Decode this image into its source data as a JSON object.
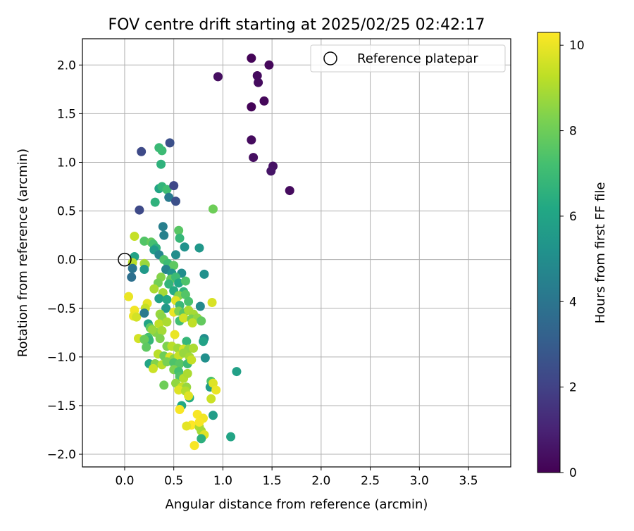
{
  "chart_data": {
    "type": "scatter",
    "title": "FOV centre drift starting at 2025/02/25 02:42:17",
    "xlabel": "Angular distance from reference (arcmin)",
    "ylabel": "Rotation from reference (arcmin)",
    "xlim": [
      -0.43,
      3.93
    ],
    "ylim": [
      -2.13,
      2.27
    ],
    "xticks": [
      0.0,
      0.5,
      1.0,
      1.5,
      2.0,
      2.5,
      3.0,
      3.5
    ],
    "xtick_labels": [
      "0.0",
      "0.5",
      "1.0",
      "1.5",
      "2.0",
      "2.5",
      "3.0",
      "3.5"
    ],
    "yticks": [
      -2.0,
      -1.5,
      -1.0,
      -0.5,
      0.0,
      0.5,
      1.0,
      1.5,
      2.0
    ],
    "ytick_labels": [
      "−2.0",
      "−1.5",
      "−1.0",
      "−0.5",
      "0.0",
      "0.5",
      "1.0",
      "1.5",
      "2.0"
    ],
    "grid": true,
    "legend": {
      "position": "top-right",
      "entries": [
        "Reference platepar"
      ]
    },
    "reference_point": {
      "x": 0.0,
      "y": 0.0,
      "label": "Reference platepar",
      "marker": "open-circle"
    },
    "colorbar": {
      "label": "Hours from first FF file",
      "range": [
        0,
        10.3
      ],
      "ticks": [
        0,
        2,
        4,
        6,
        8,
        10
      ],
      "tick_labels": [
        "0",
        "2",
        "4",
        "6",
        "8",
        "10"
      ],
      "colormap": "viridis"
    },
    "points": [
      [
        1.29,
        2.07,
        0.1
      ],
      [
        1.47,
        2.0,
        0.2
      ],
      [
        1.35,
        1.89,
        0.3
      ],
      [
        0.95,
        1.88,
        0.4
      ],
      [
        1.36,
        1.82,
        0.3
      ],
      [
        1.42,
        1.63,
        0.2
      ],
      [
        1.29,
        1.57,
        0.1
      ],
      [
        1.29,
        1.23,
        0.3
      ],
      [
        1.31,
        1.05,
        0.4
      ],
      [
        1.51,
        0.96,
        0.5
      ],
      [
        1.49,
        0.91,
        0.6
      ],
      [
        1.68,
        0.71,
        0.3
      ],
      [
        0.17,
        1.11,
        2.3
      ],
      [
        0.46,
        1.2,
        2.5
      ],
      [
        0.35,
        1.15,
        6.9
      ],
      [
        0.38,
        1.12,
        7.0
      ],
      [
        0.37,
        0.98,
        6.6
      ],
      [
        0.35,
        0.73,
        6.0
      ],
      [
        0.38,
        0.75,
        6.7
      ],
      [
        0.43,
        0.72,
        7.1
      ],
      [
        0.5,
        0.76,
        2.2
      ],
      [
        0.45,
        0.64,
        4.2
      ],
      [
        0.52,
        0.6,
        2.5
      ],
      [
        0.31,
        0.59,
        6.6
      ],
      [
        0.15,
        0.51,
        2.3
      ],
      [
        0.9,
        0.52,
        8.0
      ],
      [
        0.39,
        0.34,
        4.4
      ],
      [
        0.55,
        0.3,
        7.6
      ],
      [
        0.1,
        0.24,
        9.4
      ],
      [
        0.4,
        0.25,
        4.5
      ],
      [
        0.56,
        0.22,
        6.8
      ],
      [
        0.2,
        0.19,
        7.5
      ],
      [
        0.27,
        0.18,
        7.8
      ],
      [
        0.29,
        0.16,
        7.2
      ],
      [
        0.32,
        0.12,
        6.6
      ],
      [
        0.3,
        0.1,
        5.6
      ],
      [
        0.61,
        0.13,
        5.2
      ],
      [
        0.76,
        0.12,
        5.4
      ],
      [
        0.1,
        0.03,
        5.9
      ],
      [
        0.35,
        0.05,
        4.7
      ],
      [
        0.52,
        0.05,
        5.0
      ],
      [
        0.08,
        -0.03,
        9.2
      ],
      [
        0.2,
        -0.04,
        9.0
      ],
      [
        0.21,
        -0.05,
        8.7
      ],
      [
        0.4,
        0.0,
        7.4
      ],
      [
        0.44,
        -0.04,
        7.0
      ],
      [
        0.5,
        -0.06,
        7.7
      ],
      [
        0.08,
        -0.09,
        4.0
      ],
      [
        0.42,
        -0.1,
        4.6
      ],
      [
        0.2,
        -0.1,
        5.5
      ],
      [
        0.07,
        -0.18,
        3.8
      ],
      [
        0.48,
        -0.14,
        5.3
      ],
      [
        0.58,
        -0.14,
        5.0
      ],
      [
        0.81,
        -0.15,
        5.1
      ],
      [
        0.37,
        -0.18,
        8.4
      ],
      [
        0.47,
        -0.2,
        7.8
      ],
      [
        0.52,
        -0.18,
        7.0
      ],
      [
        0.34,
        -0.24,
        8.1
      ],
      [
        0.45,
        -0.25,
        6.7
      ],
      [
        0.55,
        -0.24,
        6.1
      ],
      [
        0.62,
        -0.22,
        7.4
      ],
      [
        0.3,
        -0.3,
        9.0
      ],
      [
        0.39,
        -0.34,
        8.9
      ],
      [
        0.5,
        -0.32,
        6.3
      ],
      [
        0.6,
        -0.33,
        6.7
      ],
      [
        0.55,
        -0.37,
        8.4
      ],
      [
        0.62,
        -0.36,
        7.5
      ],
      [
        0.35,
        -0.4,
        5.8
      ],
      [
        0.43,
        -0.41,
        6.2
      ],
      [
        0.52,
        -0.42,
        9.8
      ],
      [
        0.65,
        -0.43,
        7.3
      ],
      [
        0.04,
        -0.38,
        10.0
      ],
      [
        0.23,
        -0.45,
        9.9
      ],
      [
        0.1,
        -0.52,
        10.1
      ],
      [
        0.21,
        -0.5,
        9.4
      ],
      [
        0.42,
        -0.5,
        5.5
      ],
      [
        0.56,
        -0.47,
        6.9
      ],
      [
        0.77,
        -0.48,
        4.8
      ],
      [
        0.89,
        -0.44,
        9.7
      ],
      [
        0.09,
        -0.58,
        10.0
      ],
      [
        0.12,
        -0.59,
        9.6
      ],
      [
        0.2,
        -0.55,
        4.2
      ],
      [
        0.36,
        -0.56,
        8.7
      ],
      [
        0.38,
        -0.59,
        8.5
      ],
      [
        0.5,
        -0.54,
        10.0
      ],
      [
        0.55,
        -0.53,
        8.3
      ],
      [
        0.6,
        -0.55,
        7.6
      ],
      [
        0.65,
        -0.52,
        9.0
      ],
      [
        0.7,
        -0.56,
        8.9
      ],
      [
        0.56,
        -0.63,
        7.1
      ],
      [
        0.6,
        -0.6,
        9.6
      ],
      [
        0.68,
        -0.61,
        8.2
      ],
      [
        0.74,
        -0.6,
        8.6
      ],
      [
        0.78,
        -0.63,
        7.8
      ],
      [
        0.69,
        -0.65,
        9.3
      ],
      [
        0.24,
        -0.66,
        6.0
      ],
      [
        0.26,
        -0.7,
        7.7
      ],
      [
        0.35,
        -0.66,
        9.3
      ],
      [
        0.43,
        -0.64,
        9.0
      ],
      [
        0.32,
        -0.75,
        8.4
      ],
      [
        0.38,
        -0.73,
        8.9
      ],
      [
        0.28,
        -0.72,
        8.7
      ],
      [
        0.51,
        -0.77,
        10.0
      ],
      [
        0.14,
        -0.81,
        9.6
      ],
      [
        0.24,
        -0.8,
        7.2
      ],
      [
        0.25,
        -0.83,
        6.8
      ],
      [
        0.36,
        -0.81,
        8.3
      ],
      [
        0.2,
        -0.82,
        7.9
      ],
      [
        0.81,
        -0.81,
        5.0
      ],
      [
        0.8,
        -0.84,
        5.9
      ],
      [
        0.63,
        -0.84,
        6.8
      ],
      [
        0.43,
        -0.89,
        8.3
      ],
      [
        0.48,
        -0.89,
        9.2
      ],
      [
        0.54,
        -0.91,
        8.8
      ],
      [
        0.22,
        -0.9,
        7.7
      ],
      [
        0.6,
        -0.92,
        9.6
      ],
      [
        0.65,
        -0.92,
        8.6
      ],
      [
        0.7,
        -0.91,
        9.0
      ],
      [
        0.34,
        -0.97,
        9.2
      ],
      [
        0.4,
        -0.99,
        8.0
      ],
      [
        0.46,
        -1.0,
        9.7
      ],
      [
        0.5,
        -1.02,
        8.5
      ],
      [
        0.55,
        -0.99,
        9.4
      ],
      [
        0.6,
        -0.96,
        8.7
      ],
      [
        0.66,
        -1.0,
        8.9
      ],
      [
        0.82,
        -1.01,
        5.1
      ],
      [
        0.25,
        -1.07,
        6.0
      ],
      [
        0.31,
        -1.07,
        8.4
      ],
      [
        0.38,
        -1.08,
        9.2
      ],
      [
        0.43,
        -1.05,
        8.2
      ],
      [
        0.5,
        -1.06,
        7.4
      ],
      [
        0.56,
        -1.07,
        7.6
      ],
      [
        0.64,
        -1.07,
        7.0
      ],
      [
        0.68,
        -1.03,
        9.4
      ],
      [
        0.29,
        -1.12,
        9.5
      ],
      [
        0.5,
        -1.13,
        8.3
      ],
      [
        0.55,
        -1.15,
        7.2
      ],
      [
        1.14,
        -1.15,
        5.8
      ],
      [
        0.56,
        -1.2,
        7.4
      ],
      [
        0.6,
        -1.22,
        9.1
      ],
      [
        0.64,
        -1.17,
        9.0
      ],
      [
        0.52,
        -1.27,
        8.6
      ],
      [
        0.4,
        -1.29,
        8.0
      ],
      [
        0.88,
        -1.25,
        7.4
      ],
      [
        0.87,
        -1.31,
        5.7
      ],
      [
        0.9,
        -1.27,
        9.8
      ],
      [
        0.58,
        -1.31,
        9.4
      ],
      [
        0.63,
        -1.31,
        8.7
      ],
      [
        0.55,
        -1.34,
        9.8
      ],
      [
        0.62,
        -1.35,
        9.1
      ],
      [
        0.93,
        -1.34,
        10.0
      ],
      [
        0.66,
        -1.42,
        6.3
      ],
      [
        0.88,
        -1.43,
        9.5
      ],
      [
        0.65,
        -1.4,
        9.8
      ],
      [
        0.58,
        -1.5,
        6.2
      ],
      [
        0.56,
        -1.54,
        10.2
      ],
      [
        0.9,
        -1.6,
        5.7
      ],
      [
        0.74,
        -1.59,
        10.2
      ],
      [
        0.8,
        -1.63,
        10.1
      ],
      [
        0.68,
        -1.7,
        10.3
      ],
      [
        0.63,
        -1.71,
        9.9
      ],
      [
        0.76,
        -1.72,
        9.0
      ],
      [
        0.78,
        -1.76,
        8.9
      ],
      [
        0.81,
        -1.8,
        9.8
      ],
      [
        0.78,
        -1.84,
        6.5
      ],
      [
        1.08,
        -1.82,
        6.0
      ],
      [
        0.71,
        -1.91,
        10.2
      ],
      [
        0.76,
        -1.67,
        10.2
      ]
    ]
  }
}
